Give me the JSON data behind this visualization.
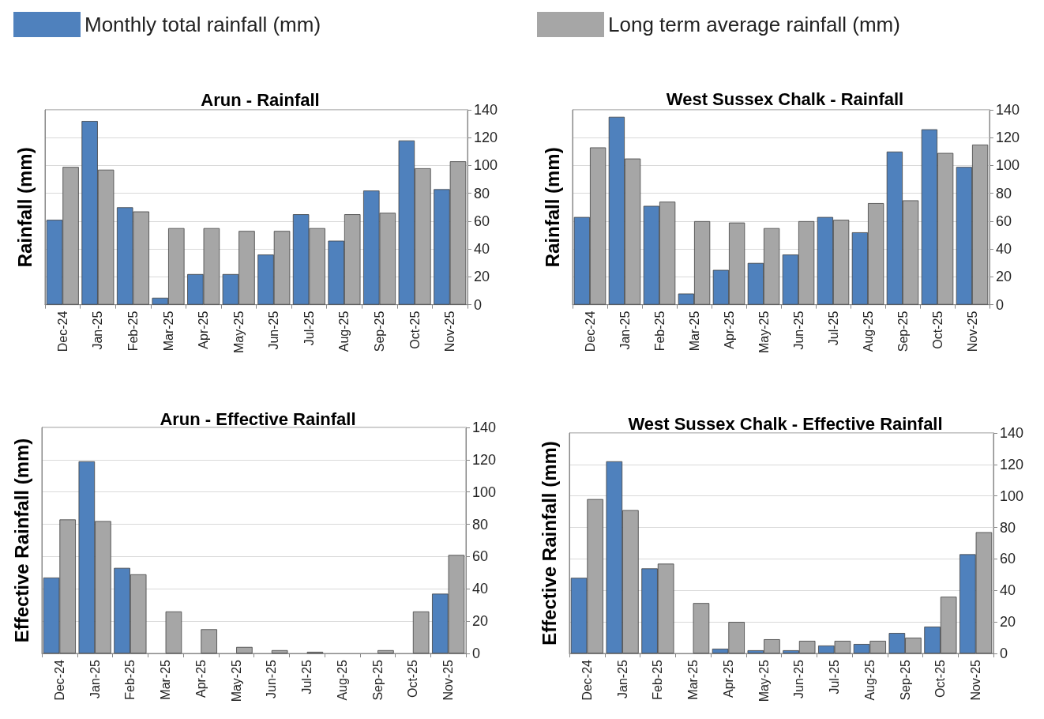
{
  "chart_data": [
    {
      "type": "bar",
      "title": "Arun - Rainfall",
      "ylabel": "Rainfall (mm)",
      "categories": [
        "Dec-24",
        "Jan-25",
        "Feb-25",
        "Mar-25",
        "Apr-25",
        "May-25",
        "Jun-25",
        "Jul-25",
        "Aug-25",
        "Sep-25",
        "Oct-25",
        "Nov-25"
      ],
      "series": [
        {
          "name": "Monthly total rainfall (mm)",
          "color": "#4f81bd",
          "values": [
            61,
            132,
            70,
            5,
            22,
            22,
            36,
            65,
            46,
            82,
            118,
            83
          ]
        },
        {
          "name": "Long term average rainfall (mm)",
          "color": "#a6a6a6",
          "values": [
            99,
            97,
            67,
            55,
            55,
            53,
            53,
            55,
            65,
            66,
            98,
            103
          ]
        }
      ],
      "ylim": [
        0,
        140
      ],
      "yticks": [
        0,
        20,
        40,
        60,
        80,
        100,
        120,
        140
      ],
      "grid": "y",
      "legend": "top"
    },
    {
      "type": "bar",
      "title": "West Sussex Chalk - Rainfall",
      "ylabel": "Rainfall (mm)",
      "categories": [
        "Dec-24",
        "Jan-25",
        "Feb-25",
        "Mar-25",
        "Apr-25",
        "May-25",
        "Jun-25",
        "Jul-25",
        "Aug-25",
        "Sep-25",
        "Oct-25",
        "Nov-25"
      ],
      "series": [
        {
          "color": "#4f81bd",
          "values": [
            63,
            135,
            71,
            8,
            25,
            30,
            36,
            63,
            52,
            110,
            126,
            99
          ]
        },
        {
          "color": "#a6a6a6",
          "values": [
            113,
            105,
            74,
            60,
            59,
            55,
            60,
            61,
            73,
            75,
            109,
            115
          ]
        }
      ],
      "ylim": [
        0,
        140
      ],
      "yticks": [
        0,
        20,
        40,
        60,
        80,
        100,
        120,
        140
      ],
      "grid": "y"
    },
    {
      "type": "bar",
      "title": "Arun - Effective Rainfall",
      "ylabel": "Effective Rainfall (mm)",
      "categories": [
        "Dec-24",
        "Jan-25",
        "Feb-25",
        "Mar-25",
        "Apr-25",
        "May-25",
        "Jun-25",
        "Jul-25",
        "Aug-25",
        "Sep-25",
        "Oct-25",
        "Nov-25"
      ],
      "series": [
        {
          "color": "#4f81bd",
          "values": [
            47,
            119,
            53,
            0,
            0,
            0,
            0,
            0,
            0,
            0,
            0,
            37
          ]
        },
        {
          "color": "#a6a6a6",
          "values": [
            83,
            82,
            49,
            26,
            15,
            4,
            2,
            1,
            0,
            2,
            26,
            61
          ]
        }
      ],
      "ylim": [
        0,
        140
      ],
      "yticks": [
        0,
        20,
        40,
        60,
        80,
        100,
        120,
        140
      ],
      "grid": "y"
    },
    {
      "type": "bar",
      "title": "West Sussex Chalk - Effective Rainfall",
      "ylabel": "Effective Rainfall (mm)",
      "categories": [
        "Dec-24",
        "Jan-25",
        "Feb-25",
        "Mar-25",
        "Apr-25",
        "May-25",
        "Jun-25",
        "Jul-25",
        "Aug-25",
        "Sep-25",
        "Oct-25",
        "Nov-25"
      ],
      "series": [
        {
          "color": "#4f81bd",
          "values": [
            48,
            122,
            54,
            0,
            3,
            2,
            2,
            5,
            6,
            13,
            17,
            63
          ]
        },
        {
          "color": "#a6a6a6",
          "values": [
            98,
            91,
            57,
            32,
            20,
            9,
            8,
            8,
            8,
            10,
            36,
            77
          ]
        }
      ],
      "ylim": [
        0,
        140
      ],
      "yticks": [
        0,
        20,
        40,
        60,
        80,
        100,
        120,
        140
      ],
      "grid": "y"
    }
  ]
}
